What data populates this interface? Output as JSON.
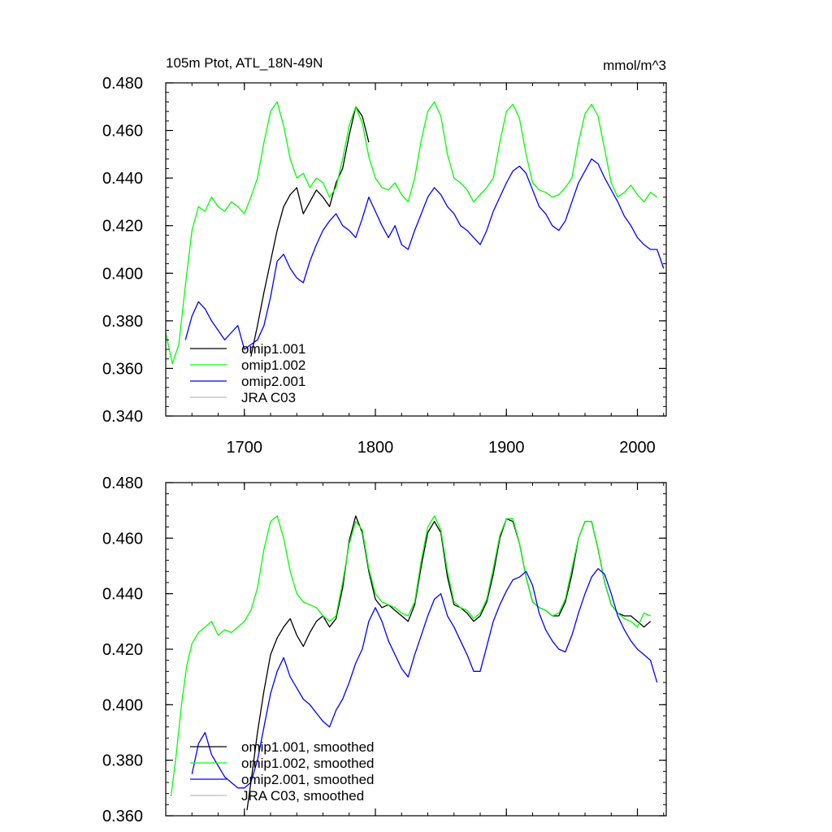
{
  "chart_data": [
    {
      "type": "line",
      "title_left": "105m Ptot, ATL_18N-49N",
      "title_right": "mmol/m^3",
      "xlim": [
        1640,
        2022
      ],
      "ylim": [
        0.34,
        0.48
      ],
      "xticks": [
        1700,
        1800,
        1900,
        2000
      ],
      "yticks": [
        0.34,
        0.36,
        0.38,
        0.4,
        0.42,
        0.44,
        0.46,
        0.48
      ],
      "ytick_labels": [
        "0.340",
        "0.360",
        "0.380",
        "0.400",
        "0.420",
        "0.440",
        "0.460",
        "0.480"
      ],
      "grid": false,
      "legend_position": "bottom-left",
      "colors": {
        "omip1.001": "#000000",
        "omip1.002": "#00ff00",
        "omip2.001": "#0000ff",
        "JRA C03": "#bbbbbb"
      },
      "series": [
        {
          "name": "omip1.001",
          "color": "#000000",
          "x": [
            1705,
            1710,
            1715,
            1720,
            1725,
            1730,
            1735,
            1740,
            1745,
            1750,
            1755,
            1760,
            1765,
            1770,
            1775,
            1780,
            1785,
            1790,
            1795
          ],
          "y": [
            0.365,
            0.378,
            0.392,
            0.405,
            0.418,
            0.428,
            0.433,
            0.436,
            0.425,
            0.43,
            0.435,
            0.432,
            0.428,
            0.438,
            0.444,
            0.458,
            0.47,
            0.466,
            0.455
          ]
        },
        {
          "name": "omip1.002",
          "color": "#00ff00",
          "x": [
            1640,
            1645,
            1650,
            1655,
            1660,
            1665,
            1670,
            1675,
            1680,
            1685,
            1690,
            1695,
            1700,
            1705,
            1710,
            1715,
            1720,
            1725,
            1730,
            1735,
            1740,
            1745,
            1750,
            1755,
            1760,
            1765,
            1770,
            1775,
            1780,
            1785,
            1790,
            1795,
            1800,
            1805,
            1810,
            1815,
            1820,
            1825,
            1830,
            1835,
            1840,
            1845,
            1850,
            1855,
            1860,
            1865,
            1870,
            1875,
            1880,
            1885,
            1890,
            1895,
            1900,
            1905,
            1910,
            1915,
            1920,
            1925,
            1930,
            1935,
            1940,
            1945,
            1950,
            1955,
            1960,
            1965,
            1970,
            1975,
            1980,
            1985,
            1990,
            1995,
            2000,
            2005,
            2010,
            2015
          ],
          "y": [
            0.375,
            0.362,
            0.37,
            0.395,
            0.418,
            0.428,
            0.426,
            0.432,
            0.428,
            0.426,
            0.43,
            0.428,
            0.425,
            0.432,
            0.44,
            0.455,
            0.468,
            0.472,
            0.462,
            0.448,
            0.44,
            0.442,
            0.436,
            0.44,
            0.438,
            0.432,
            0.436,
            0.448,
            0.462,
            0.47,
            0.463,
            0.449,
            0.44,
            0.436,
            0.435,
            0.438,
            0.433,
            0.43,
            0.44,
            0.456,
            0.468,
            0.472,
            0.466,
            0.45,
            0.44,
            0.438,
            0.435,
            0.43,
            0.433,
            0.436,
            0.44,
            0.455,
            0.468,
            0.471,
            0.465,
            0.45,
            0.438,
            0.435,
            0.434,
            0.432,
            0.433,
            0.436,
            0.44,
            0.455,
            0.467,
            0.471,
            0.466,
            0.452,
            0.438,
            0.432,
            0.434,
            0.437,
            0.433,
            0.43,
            0.434,
            0.432
          ]
        },
        {
          "name": "omip2.001",
          "color": "#0000ff",
          "x": [
            1655,
            1660,
            1665,
            1670,
            1675,
            1680,
            1685,
            1690,
            1695,
            1700,
            1705,
            1710,
            1715,
            1720,
            1725,
            1730,
            1735,
            1740,
            1745,
            1750,
            1755,
            1760,
            1765,
            1770,
            1775,
            1780,
            1785,
            1790,
            1795,
            1800,
            1805,
            1810,
            1815,
            1820,
            1825,
            1830,
            1835,
            1840,
            1845,
            1850,
            1855,
            1860,
            1865,
            1870,
            1875,
            1880,
            1885,
            1890,
            1895,
            1900,
            1905,
            1910,
            1915,
            1920,
            1925,
            1930,
            1935,
            1940,
            1945,
            1950,
            1955,
            1960,
            1965,
            1970,
            1975,
            1980,
            1985,
            1990,
            1995,
            2000,
            2005,
            2010,
            2015,
            2020
          ],
          "y": [
            0.372,
            0.382,
            0.388,
            0.385,
            0.38,
            0.376,
            0.372,
            0.375,
            0.378,
            0.368,
            0.37,
            0.372,
            0.378,
            0.39,
            0.405,
            0.408,
            0.402,
            0.398,
            0.396,
            0.405,
            0.412,
            0.418,
            0.422,
            0.425,
            0.42,
            0.418,
            0.415,
            0.423,
            0.432,
            0.426,
            0.42,
            0.415,
            0.42,
            0.412,
            0.41,
            0.418,
            0.425,
            0.432,
            0.436,
            0.433,
            0.428,
            0.425,
            0.42,
            0.418,
            0.415,
            0.412,
            0.418,
            0.426,
            0.432,
            0.438,
            0.443,
            0.445,
            0.442,
            0.435,
            0.428,
            0.425,
            0.42,
            0.418,
            0.422,
            0.43,
            0.438,
            0.443,
            0.448,
            0.446,
            0.44,
            0.435,
            0.43,
            0.424,
            0.42,
            0.415,
            0.412,
            0.41,
            0.41,
            0.402
          ]
        },
        {
          "name": "JRA C03",
          "color": "#bbbbbb",
          "x": [],
          "y": []
        }
      ]
    },
    {
      "type": "line",
      "xlim": [
        1640,
        2022
      ],
      "ylim": [
        0.36,
        0.48
      ],
      "xticks": [
        1700,
        1800,
        1900,
        2000
      ],
      "yticks": [
        0.36,
        0.38,
        0.4,
        0.42,
        0.44,
        0.46,
        0.48
      ],
      "ytick_labels": [
        "0.360",
        "0.380",
        "0.400",
        "0.420",
        "0.440",
        "0.460",
        "0.480"
      ],
      "grid": false,
      "legend_position": "bottom-left",
      "colors": {
        "omip1.001, smoothed": "#000000",
        "omip1.002, smoothed": "#00ff00",
        "omip2.001, smoothed": "#0000ff",
        "JRA C03, smoothed": "#bbbbbb"
      },
      "series": [
        {
          "name": "omip1.001, smoothed",
          "color": "#000000",
          "x": [
            1702,
            1705,
            1710,
            1715,
            1720,
            1725,
            1730,
            1735,
            1740,
            1745,
            1750,
            1755,
            1760,
            1765,
            1770,
            1775,
            1780,
            1785,
            1790,
            1795,
            1800,
            1805,
            1810,
            1815,
            1820,
            1825,
            1830,
            1835,
            1840,
            1845,
            1850,
            1855,
            1860,
            1865,
            1870,
            1875,
            1880,
            1885,
            1890,
            1895,
            1900,
            1905,
            1910,
            1915,
            1920,
            1925,
            1930,
            1935,
            1940,
            1945,
            1950,
            1955,
            1960,
            1965,
            1970,
            1975,
            1980,
            1985,
            1990,
            1995,
            2000,
            2005,
            2010
          ],
          "y": [
            0.362,
            0.372,
            0.39,
            0.405,
            0.418,
            0.424,
            0.428,
            0.431,
            0.425,
            0.421,
            0.426,
            0.43,
            0.432,
            0.428,
            0.431,
            0.442,
            0.459,
            0.468,
            0.462,
            0.448,
            0.438,
            0.435,
            0.436,
            0.434,
            0.432,
            0.43,
            0.436,
            0.45,
            0.462,
            0.466,
            0.462,
            0.446,
            0.436,
            0.435,
            0.433,
            0.43,
            0.432,
            0.437,
            0.447,
            0.46,
            0.467,
            0.466,
            0.458,
            0.446,
            0.437,
            0.435,
            0.434,
            0.432,
            0.432,
            0.437,
            0.447,
            0.46,
            0.466,
            0.466,
            0.456,
            0.444,
            0.436,
            0.433,
            0.432,
            0.432,
            0.43,
            0.428,
            0.43
          ]
        },
        {
          "name": "omip1.002, smoothed",
          "color": "#00ff00",
          "x": [
            1644,
            1648,
            1652,
            1656,
            1660,
            1665,
            1670,
            1675,
            1680,
            1685,
            1690,
            1695,
            1700,
            1705,
            1710,
            1715,
            1720,
            1725,
            1730,
            1735,
            1740,
            1745,
            1750,
            1755,
            1760,
            1765,
            1770,
            1775,
            1780,
            1785,
            1790,
            1795,
            1800,
            1805,
            1810,
            1815,
            1820,
            1825,
            1830,
            1835,
            1840,
            1845,
            1850,
            1855,
            1860,
            1865,
            1870,
            1875,
            1880,
            1885,
            1890,
            1895,
            1900,
            1905,
            1910,
            1915,
            1920,
            1925,
            1930,
            1935,
            1940,
            1945,
            1950,
            1955,
            1960,
            1965,
            1970,
            1975,
            1980,
            1985,
            1990,
            1995,
            2000,
            2005,
            2010
          ],
          "y": [
            0.367,
            0.382,
            0.4,
            0.414,
            0.422,
            0.426,
            0.428,
            0.43,
            0.425,
            0.427,
            0.426,
            0.428,
            0.43,
            0.434,
            0.442,
            0.456,
            0.466,
            0.468,
            0.46,
            0.448,
            0.44,
            0.437,
            0.436,
            0.435,
            0.432,
            0.43,
            0.432,
            0.444,
            0.458,
            0.466,
            0.463,
            0.449,
            0.44,
            0.437,
            0.436,
            0.435,
            0.433,
            0.432,
            0.437,
            0.452,
            0.464,
            0.468,
            0.463,
            0.448,
            0.437,
            0.435,
            0.434,
            0.431,
            0.433,
            0.438,
            0.449,
            0.461,
            0.467,
            0.467,
            0.458,
            0.446,
            0.437,
            0.435,
            0.434,
            0.432,
            0.433,
            0.438,
            0.449,
            0.46,
            0.466,
            0.466,
            0.456,
            0.444,
            0.436,
            0.433,
            0.431,
            0.43,
            0.428,
            0.433,
            0.432
          ]
        },
        {
          "name": "omip2.001, smoothed",
          "color": "#0000ff",
          "x": [
            1660,
            1665,
            1670,
            1675,
            1680,
            1685,
            1690,
            1695,
            1700,
            1705,
            1710,
            1715,
            1720,
            1725,
            1730,
            1735,
            1740,
            1745,
            1750,
            1755,
            1760,
            1765,
            1770,
            1775,
            1780,
            1785,
            1790,
            1795,
            1800,
            1805,
            1810,
            1815,
            1820,
            1825,
            1830,
            1835,
            1840,
            1845,
            1850,
            1855,
            1860,
            1865,
            1870,
            1875,
            1880,
            1885,
            1890,
            1895,
            1900,
            1905,
            1910,
            1915,
            1920,
            1925,
            1930,
            1935,
            1940,
            1945,
            1950,
            1955,
            1960,
            1965,
            1970,
            1975,
            1980,
            1985,
            1990,
            1995,
            2000,
            2005,
            2010,
            2015
          ],
          "y": [
            0.375,
            0.386,
            0.39,
            0.382,
            0.378,
            0.374,
            0.372,
            0.37,
            0.37,
            0.372,
            0.38,
            0.392,
            0.404,
            0.412,
            0.417,
            0.41,
            0.406,
            0.402,
            0.4,
            0.397,
            0.394,
            0.392,
            0.398,
            0.402,
            0.408,
            0.415,
            0.42,
            0.43,
            0.435,
            0.43,
            0.423,
            0.418,
            0.413,
            0.41,
            0.418,
            0.425,
            0.432,
            0.438,
            0.44,
            0.432,
            0.428,
            0.423,
            0.418,
            0.412,
            0.412,
            0.421,
            0.43,
            0.436,
            0.441,
            0.445,
            0.446,
            0.448,
            0.443,
            0.433,
            0.427,
            0.423,
            0.42,
            0.419,
            0.425,
            0.433,
            0.44,
            0.446,
            0.449,
            0.447,
            0.44,
            0.432,
            0.427,
            0.423,
            0.42,
            0.418,
            0.416,
            0.408
          ]
        },
        {
          "name": "JRA C03, smoothed",
          "color": "#bbbbbb",
          "x": [],
          "y": []
        }
      ]
    }
  ]
}
